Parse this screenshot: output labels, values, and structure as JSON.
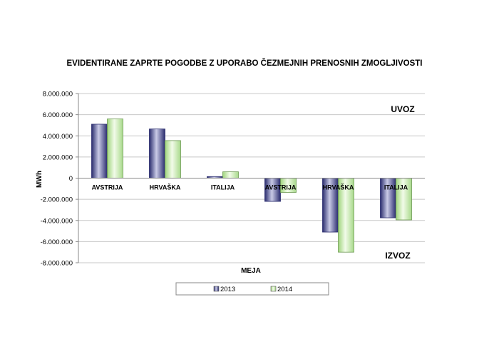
{
  "chart_data": {
    "type": "bar",
    "title": "EVIDENTIRANE ZAPRTE POGODBE Z UPORABO ČEZMEJNIH PRENOSNIH ZMOGLJIVOSTI",
    "xlabel": "MEJA",
    "ylabel": "MWh",
    "categories": [
      "AVSTRIJA",
      "HRVAŠKA",
      "ITALIJA",
      "AVSTRIJA",
      "HRVAŠKA",
      "ITALIJA"
    ],
    "series": [
      {
        "name": "2013",
        "values": [
          5100000,
          4650000,
          150000,
          -2200000,
          -5100000,
          -3750000
        ]
      },
      {
        "name": "2014",
        "values": [
          5600000,
          3550000,
          600000,
          -1350000,
          -7000000,
          -3950000
        ]
      }
    ],
    "ylim": [
      -8000000,
      8000000
    ],
    "yticks": [
      8000000,
      6000000,
      4000000,
      2000000,
      0,
      -2000000,
      -4000000,
      -6000000,
      -8000000
    ],
    "ytick_labels": [
      "8.000.000",
      "6.000.000",
      "4.000.000",
      "2.000.000",
      "0",
      "-2.000.000",
      "-4.000.000",
      "-6.000.000",
      "-8.000.000"
    ],
    "annotations": [
      "UVOZ",
      "IZVOZ"
    ],
    "grid": true,
    "legend": "bottom",
    "colors": {
      "2013": "#3b3d8f",
      "2014": "#bfe6a3",
      "grid": "#c8c8c8"
    }
  }
}
